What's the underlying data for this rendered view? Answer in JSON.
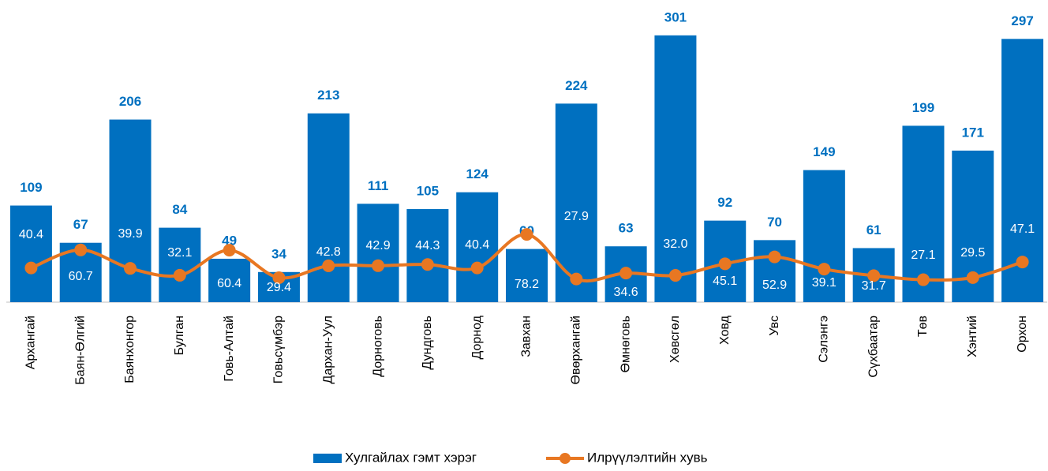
{
  "chart_data": {
    "type": "bar_line",
    "categories": [
      "Архангай",
      "Баян-Өлгий",
      "Баянхонгор",
      "Булган",
      "Говь-Алтай",
      "Говьсүмбэр",
      "Дархан-Уул",
      "Дорноговь",
      "Дундговь",
      "Дорнод",
      "Завхан",
      "Өвөрхангай",
      "Өмнөговь",
      "Хөвсгөл",
      "Ховд",
      "Увс",
      "Сэлэнгэ",
      "Сүхбаатар",
      "Төв",
      "Хэнтий",
      "Орхон"
    ],
    "series": [
      {
        "name": "Хулгайлах гэмт хэрэг",
        "type": "bar",
        "color": "#0070c0",
        "values": [
          109,
          67,
          206,
          84,
          49,
          34,
          213,
          111,
          105,
          124,
          60,
          224,
          63,
          301,
          92,
          70,
          149,
          61,
          199,
          171,
          297
        ]
      },
      {
        "name": "Илрүүлэлтийн хувь",
        "type": "line",
        "axis": "y2",
        "color": "#e87722",
        "values": [
          40.4,
          60.7,
          39.9,
          32.1,
          60.4,
          29.4,
          42.8,
          42.9,
          44.3,
          40.4,
          78.2,
          27.9,
          34.6,
          32.0,
          45.1,
          52.9,
          39.1,
          31.7,
          27.1,
          29.5,
          47.1
        ],
        "value_labels": [
          "40.4",
          "60.7",
          "39.9",
          "32.1",
          "60.4",
          "29.4",
          "42.8",
          "42.9",
          "44.3",
          "40.4",
          "78.2",
          "27.9",
          "34.6",
          "32.0",
          "45.1",
          "52.9",
          "39.1",
          "31.7",
          "27.1",
          "29.5",
          "47.1"
        ]
      }
    ],
    "ylim": [
      0,
      340
    ],
    "y2lim": [
      0,
      340
    ],
    "legend": "bottom"
  }
}
